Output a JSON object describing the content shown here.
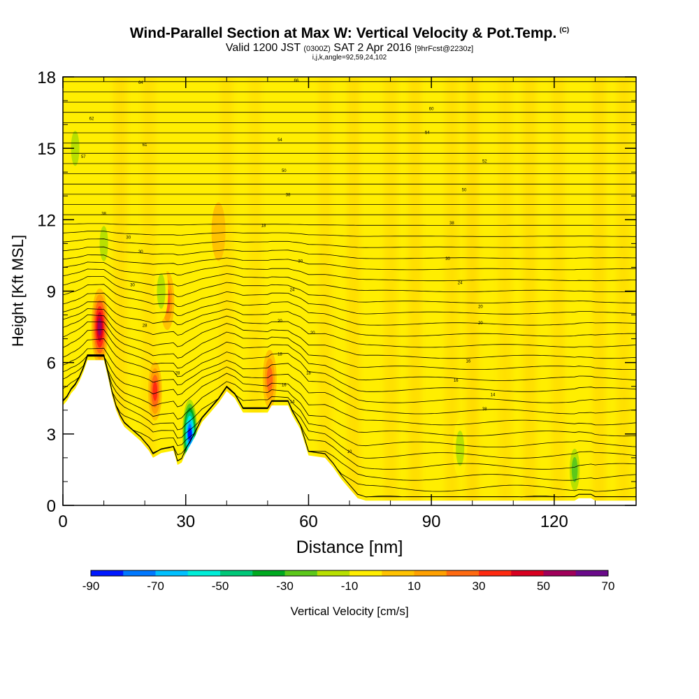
{
  "title": {
    "main": "Wind-Parallel Section at Max W: Vertical Velocity & Pot.Temp.",
    "copyright": "(C)",
    "valid_prefix": "Valid 1200 JST",
    "valid_utc": "(0300Z)",
    "valid_date": "SAT 2 Apr 2016",
    "forecast": "[9hrFcst@2230z]",
    "indices": "i,j,k,angle=92,59,24,102"
  },
  "chart_data": {
    "type": "heatmap",
    "xlabel": "Distance [nm]",
    "ylabel": "Height [Kft MSL]",
    "xlim": [
      0,
      140
    ],
    "ylim": [
      0,
      18
    ],
    "x_ticks": [
      0,
      30,
      60,
      90,
      120
    ],
    "y_ticks": [
      0,
      3,
      6,
      9,
      12,
      15,
      18
    ],
    "colorbar": {
      "label": "Vertical Velocity [cm/s]",
      "tick_labels": [
        "-90",
        "-70",
        "-50",
        "-30",
        "-10",
        "10",
        "30",
        "50",
        "70"
      ],
      "bounds": [
        -90,
        -80,
        -70,
        -60,
        -50,
        -40,
        -30,
        -20,
        -10,
        0,
        10,
        20,
        30,
        40,
        50,
        60,
        70
      ],
      "colors": [
        "#0018ff",
        "#0078ff",
        "#00c0ff",
        "#00eed8",
        "#00c878",
        "#00aa20",
        "#5cc81a",
        "#b8e000",
        "#ffee00",
        "#ffc200",
        "#ffa000",
        "#ff6a10",
        "#ff2a10",
        "#d80020",
        "#a0005a",
        "#6a0a8a"
      ]
    },
    "terrain_profile": [
      [
        0,
        4.2
      ],
      [
        1,
        4.4
      ],
      [
        2,
        4.7
      ],
      [
        3,
        4.9
      ],
      [
        4,
        5.2
      ],
      [
        5,
        5.6
      ],
      [
        6,
        6.1
      ],
      [
        10,
        6.1
      ],
      [
        11,
        5.4
      ],
      [
        12,
        4.6
      ],
      [
        13,
        4.0
      ],
      [
        14,
        3.6
      ],
      [
        15,
        3.3
      ],
      [
        17,
        3.0
      ],
      [
        19,
        2.7
      ],
      [
        21,
        2.3
      ],
      [
        22,
        2.0
      ],
      [
        24,
        2.2
      ],
      [
        27,
        2.3
      ],
      [
        28,
        1.7
      ],
      [
        29,
        1.8
      ],
      [
        30,
        2.2
      ],
      [
        32,
        2.8
      ],
      [
        34,
        3.5
      ],
      [
        36,
        3.9
      ],
      [
        38,
        4.3
      ],
      [
        40,
        4.8
      ],
      [
        42,
        4.5
      ],
      [
        44,
        3.9
      ],
      [
        50,
        3.9
      ],
      [
        51,
        4.2
      ],
      [
        55,
        4.2
      ],
      [
        56,
        3.8
      ],
      [
        58,
        3.2
      ],
      [
        60,
        2.1
      ],
      [
        64,
        2.0
      ],
      [
        66,
        1.6
      ],
      [
        68,
        1.1
      ],
      [
        70,
        0.7
      ],
      [
        72,
        0.3
      ],
      [
        74,
        0.2
      ],
      [
        125,
        0.2
      ],
      [
        126,
        0.3
      ],
      [
        129,
        0.3
      ],
      [
        130,
        0.2
      ],
      [
        140,
        0.2
      ]
    ],
    "updraft_cores": [
      {
        "x": 9,
        "y": 7.5,
        "value": 60
      },
      {
        "x": 22.5,
        "y": 4.8,
        "value": 40
      },
      {
        "x": 25.5,
        "y": 8.6,
        "value": 30
      },
      {
        "x": 50.5,
        "y": 5.3,
        "value": 30
      },
      {
        "x": 38,
        "y": 11.5,
        "value": 10
      }
    ],
    "downdraft_cores": [
      {
        "x": 31,
        "y": 3.0,
        "value": -90
      },
      {
        "x": 24,
        "y": 9.0,
        "value": -20
      },
      {
        "x": 10,
        "y": 11.0,
        "value": -20
      },
      {
        "x": 97,
        "y": 2.4,
        "value": -20
      },
      {
        "x": 125,
        "y": 1.5,
        "value": -30
      },
      {
        "x": 3,
        "y": 15.0,
        "value": -20
      }
    ],
    "isentrope_labels": [
      {
        "x": 7,
        "y": 16.2,
        "text": "62"
      },
      {
        "x": 19,
        "y": 17.7,
        "text": "64"
      },
      {
        "x": 57,
        "y": 17.8,
        "text": "66"
      },
      {
        "x": 90,
        "y": 16.6,
        "text": "60"
      },
      {
        "x": 20,
        "y": 15.1,
        "text": "61"
      },
      {
        "x": 53,
        "y": 15.3,
        "text": "54"
      },
      {
        "x": 89,
        "y": 15.6,
        "text": "54"
      },
      {
        "x": 103,
        "y": 14.4,
        "text": "52"
      },
      {
        "x": 5,
        "y": 14.6,
        "text": "57"
      },
      {
        "x": 54,
        "y": 14.0,
        "text": "50"
      },
      {
        "x": 98,
        "y": 13.2,
        "text": "50"
      },
      {
        "x": 55,
        "y": 13.0,
        "text": "38"
      },
      {
        "x": 10,
        "y": 12.2,
        "text": "38"
      },
      {
        "x": 49,
        "y": 11.7,
        "text": "18"
      },
      {
        "x": 95,
        "y": 11.8,
        "text": "38"
      },
      {
        "x": 16,
        "y": 11.2,
        "text": "30"
      },
      {
        "x": 19,
        "y": 10.6,
        "text": "30"
      },
      {
        "x": 58,
        "y": 10.2,
        "text": "30"
      },
      {
        "x": 94,
        "y": 10.3,
        "text": "30"
      },
      {
        "x": 17,
        "y": 9.2,
        "text": "30"
      },
      {
        "x": 56,
        "y": 9.0,
        "text": "24"
      },
      {
        "x": 97,
        "y": 9.3,
        "text": "24"
      },
      {
        "x": 20,
        "y": 7.5,
        "text": "28"
      },
      {
        "x": 53,
        "y": 7.7,
        "text": "20"
      },
      {
        "x": 102,
        "y": 8.3,
        "text": "20"
      },
      {
        "x": 61,
        "y": 7.2,
        "text": "20"
      },
      {
        "x": 102,
        "y": 7.6,
        "text": "20"
      },
      {
        "x": 53,
        "y": 6.3,
        "text": "18"
      },
      {
        "x": 28,
        "y": 5.5,
        "text": "28"
      },
      {
        "x": 60,
        "y": 5.5,
        "text": "18"
      },
      {
        "x": 99,
        "y": 6.0,
        "text": "16"
      },
      {
        "x": 54,
        "y": 5.0,
        "text": "16"
      },
      {
        "x": 96,
        "y": 5.2,
        "text": "16"
      },
      {
        "x": 56,
        "y": 4.3,
        "text": "14"
      },
      {
        "x": 105,
        "y": 4.6,
        "text": "14"
      },
      {
        "x": 103,
        "y": 4.0,
        "text": "38"
      },
      {
        "x": 70,
        "y": 2.2,
        "text": "10"
      }
    ]
  }
}
